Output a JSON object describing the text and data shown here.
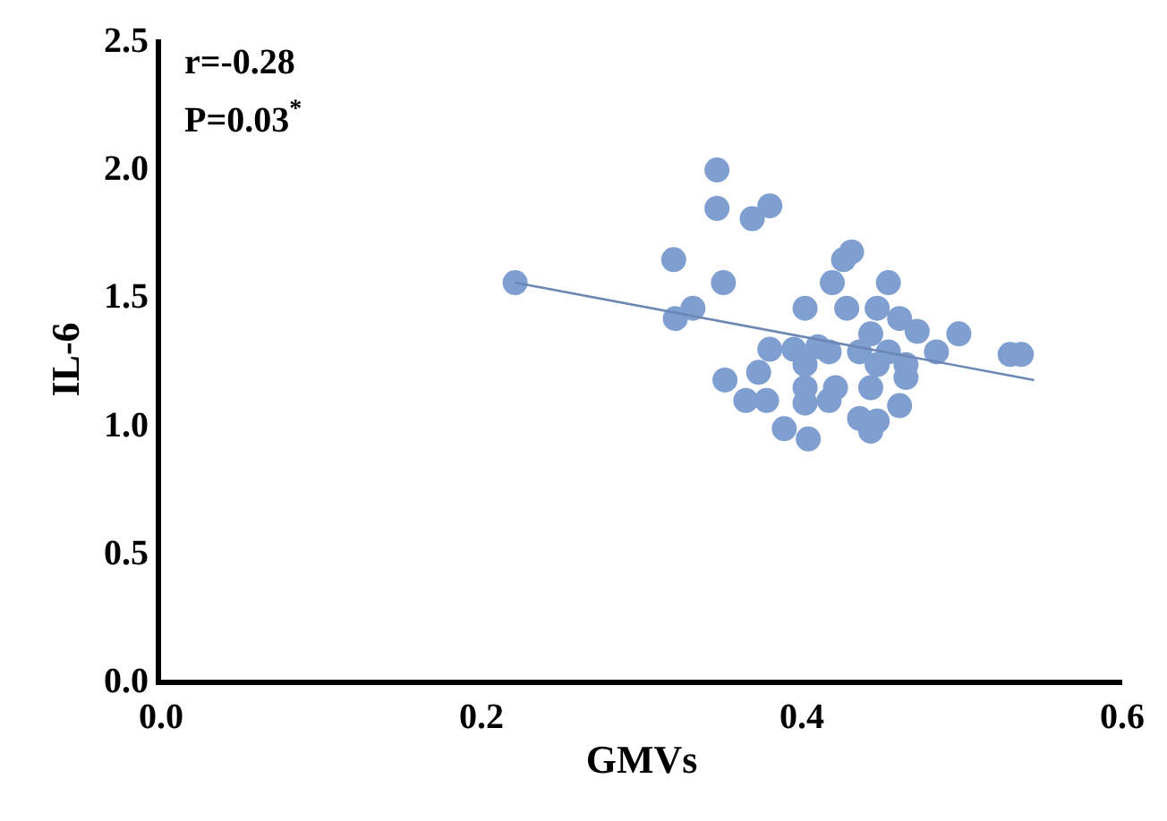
{
  "chart_data": {
    "type": "scatter",
    "xlabel": "GMVs",
    "ylabel": "IL-6",
    "annotations": [
      "r=-0.28",
      "P=0.03$^{*}$"
    ],
    "xlim": [
      0,
      0.6
    ],
    "xticks": [
      {
        "value": 0,
        "label": "0.0"
      },
      0.2,
      0.4,
      0.6
    ],
    "ylim": [
      0,
      2.5
    ],
    "yticks": [
      {
        "value": 0,
        "label": "0.0"
      },
      0.5,
      {
        "value": 1,
        "label": "1.0"
      },
      1.5,
      {
        "value": 2,
        "label": "2.0"
      },
      2.5
    ],
    "marker": "circle",
    "series": [
      {
        "color": "#7f9fd0",
        "x": [
          0.221,
          0.347,
          0.347,
          0.369,
          0.38,
          0.32,
          0.351,
          0.321,
          0.332,
          0.431,
          0.426,
          0.419,
          0.454,
          0.402,
          0.428,
          0.447,
          0.461,
          0.472,
          0.498,
          0.38,
          0.395,
          0.417,
          0.436,
          0.443,
          0.454,
          0.465,
          0.484,
          0.53,
          0.537,
          0.402,
          0.447,
          0.352,
          0.373,
          0.365,
          0.378,
          0.402,
          0.402,
          0.421,
          0.417,
          0.443,
          0.465,
          0.461,
          0.436,
          0.447,
          0.389,
          0.404,
          0.443,
          0.41
        ],
        "values": [
          1.55,
          1.99,
          1.84,
          1.8,
          1.85,
          1.64,
          1.55,
          1.41,
          1.45,
          1.67,
          1.64,
          1.55,
          1.55,
          1.45,
          1.45,
          1.45,
          1.41,
          1.36,
          1.35,
          1.29,
          1.29,
          1.28,
          1.28,
          1.35,
          1.28,
          1.23,
          1.28,
          1.27,
          1.27,
          1.23,
          1.23,
          1.17,
          1.2,
          1.09,
          1.09,
          1.14,
          1.08,
          1.14,
          1.09,
          1.14,
          1.18,
          1.07,
          1.02,
          1.01,
          0.98,
          0.94,
          0.97,
          1.3
        ]
      },
      {
        "type": "line",
        "color": "#6d87b5",
        "marker": "none",
        "line_style": "solid",
        "x": [
          0.221,
          0.545
        ],
        "values": [
          1.55,
          1.17
        ]
      }
    ]
  }
}
